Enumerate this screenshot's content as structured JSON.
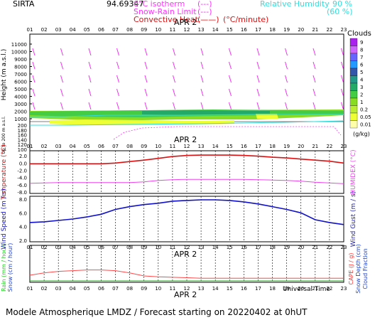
{
  "header": {
    "site": "SIRTA",
    "code": "94.69347",
    "legend": {
      "iso_label": "0°C isotherm",
      "iso_symbol": "(---)",
      "snow_label": "Snow-Rain Limit",
      "snow_symbol": "(---)",
      "conv_label": "Convective Heat.",
      "conv_symbol": "(——)",
      "conv_unit": "(°C/minute)",
      "rh_label": "Relative Humidity",
      "rh_90": "90 %",
      "rh_60": "(60 %)"
    }
  },
  "colors": {
    "grid": "#000000",
    "temperature": "#dd1111",
    "humidex": "#ee44ee",
    "wind_speed": "#1111cc",
    "wind_gust": "#1a1aaa",
    "rain": "#ff4a4a",
    "snow": "#22aa22",
    "rh": "#33dddd",
    "wind_barb": "#ee33ee",
    "capc": "#ff3333"
  },
  "time_axis": {
    "date_label": "APR  2",
    "hours": [
      "01",
      "02",
      "03",
      "04",
      "05",
      "06",
      "07",
      "08",
      "09",
      "10",
      "11",
      "12",
      "13",
      "14",
      "15",
      "16",
      "17",
      "18",
      "19",
      "20",
      "21",
      "22",
      "23"
    ],
    "universal_time": "Universal Time"
  },
  "panels": {
    "height": {
      "ylabel": "Height  (m a.s.l.)",
      "ylabel_low": "Up to 200 m a.s.l.",
      "yticks_upper": [
        "11000",
        "10000",
        "9000",
        "8000",
        "7000",
        "6000",
        "5000",
        "4000",
        "3000",
        "2000",
        "1000"
      ],
      "yticks_lower": [
        "200",
        "180",
        "160",
        "140",
        "120",
        "100"
      ]
    },
    "temperature": {
      "ylabel_left": "Temperature (°C)",
      "ylabel_right": "HUMIDEX (°C)",
      "yticks": [
        "2.0",
        "0.0",
        "-2.0",
        "-4.0",
        "-6.0",
        "-8.0"
      ]
    },
    "wind": {
      "ylabel_left": "Wind Speed (m / s)",
      "ylabel_right": "Wind Gust (m / s)",
      "yticks": [
        "8.0",
        "6.0",
        "4.0",
        "2.0"
      ]
    },
    "precip": {
      "ylabel_left1": "Rain (mm / hour)",
      "ylabel_left2": "Snow (cm / hour)",
      "ylabel_right1": "CAPE (J / g)",
      "ylabel_right2": "Snow Depth (cm)",
      "ylabel_right3": "Cloud Fraction"
    }
  },
  "clouds_scale": {
    "title": "Clouds",
    "unit": "(g/kg)",
    "levels": [
      "9",
      "8",
      "7",
      "6",
      "5",
      "4",
      "3",
      "2",
      "1",
      "0.2",
      "0.05",
      "0.01"
    ],
    "colors": [
      "#aa22ee",
      "#cc66ff",
      "#6666ff",
      "#2299ff",
      "#3355aa",
      "#229988",
      "#22aa66",
      "#44cc44",
      "#88dd22",
      "#bbee33",
      "#eeff33",
      "#ffffaa"
    ]
  },
  "footer": {
    "title": "Modele Atmospherique LMDZ / Forecast starting on 20220402 at 0hUT"
  },
  "chart_data": [
    {
      "type": "line",
      "title": "Temperature",
      "x": [
        "01",
        "02",
        "03",
        "04",
        "05",
        "06",
        "07",
        "08",
        "09",
        "10",
        "11",
        "12",
        "13",
        "14",
        "15",
        "16",
        "17",
        "18",
        "19",
        "20",
        "21",
        "22",
        "23"
      ],
      "series": [
        {
          "name": "Temperature",
          "values": [
            -0.2,
            -0.2,
            -0.2,
            -0.2,
            -0.2,
            -0.2,
            0.0,
            0.4,
            0.8,
            1.3,
            1.8,
            2.1,
            2.2,
            2.2,
            2.2,
            2.1,
            1.9,
            1.6,
            1.4,
            1.1,
            0.8,
            0.5,
            0.0
          ]
        },
        {
          "name": "HUMIDEX",
          "values": [
            -5.6,
            -5.5,
            -5.4,
            -5.4,
            -5.4,
            -5.4,
            -5.4,
            -5.4,
            -5.2,
            -4.8,
            -4.6,
            -4.5,
            -4.5,
            -4.5,
            -4.5,
            -4.5,
            -4.6,
            -4.7,
            -4.8,
            -5.0,
            -5.3,
            -5.5,
            -5.7
          ]
        }
      ],
      "ylim": [
        -8,
        3
      ]
    },
    {
      "type": "line",
      "title": "Wind Speed",
      "x": [
        "01",
        "02",
        "03",
        "04",
        "05",
        "06",
        "07",
        "08",
        "09",
        "10",
        "11",
        "12",
        "13",
        "14",
        "15",
        "16",
        "17",
        "18",
        "19",
        "20",
        "21",
        "22",
        "23"
      ],
      "series": [
        {
          "name": "Wind Speed",
          "values": [
            4.6,
            4.7,
            4.9,
            5.1,
            5.4,
            5.8,
            6.5,
            6.9,
            7.2,
            7.4,
            7.7,
            7.8,
            7.9,
            7.9,
            7.8,
            7.6,
            7.3,
            6.9,
            6.5,
            6.0,
            5.0,
            4.6,
            4.3
          ]
        }
      ],
      "ylim": [
        2,
        8
      ]
    },
    {
      "type": "line",
      "title": "Rain",
      "x": [
        "01",
        "02",
        "03",
        "04",
        "05",
        "06",
        "07",
        "08",
        "09",
        "10",
        "11",
        "12",
        "13",
        "14",
        "15",
        "16",
        "17",
        "18",
        "19",
        "20",
        "21",
        "22",
        "23"
      ],
      "series": [
        {
          "name": "Rain",
          "values": [
            0.25,
            0.35,
            0.42,
            0.45,
            0.48,
            0.48,
            0.45,
            0.35,
            0.22,
            0.18,
            0.16,
            0.14,
            0.12,
            0.12,
            0.12,
            0.12,
            0.12,
            0.12,
            0.12,
            0.12,
            0.12,
            0.12,
            0.12
          ]
        }
      ],
      "ylim": [
        0,
        1.5
      ]
    }
  ]
}
